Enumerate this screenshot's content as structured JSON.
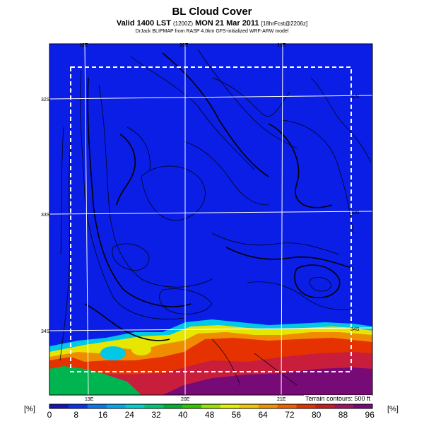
{
  "header": {
    "title": "BL Cloud Cover",
    "valid_text": "Valid 1400 LST",
    "valid_code": "(1200Z)",
    "date_text": "MON 21 Mar 2011",
    "forecast_code": "[18hrFcst@2206z]",
    "credit": "DrJack BLIPMAP from RASP 4.0km GFS-initialized WRF-ARW model"
  },
  "map": {
    "lon_labels_top": [
      "19E",
      "20E",
      "21E"
    ],
    "lon_labels_bottom": [
      "19E",
      "20E",
      "21E"
    ],
    "lat_labels_left": [
      "32S",
      "33S",
      "34S"
    ],
    "lat_labels_right": [
      "32S",
      "33S",
      "34S"
    ],
    "terrain_note": "Terrain contours: 500 ft"
  },
  "colorbar": {
    "unit_label": "[%]",
    "ticks": [
      "0",
      "8",
      "16",
      "24",
      "32",
      "40",
      "48",
      "56",
      "64",
      "72",
      "80",
      "88",
      "96"
    ],
    "colors": [
      "#1414b4",
      "#0a32f0",
      "#0a78f0",
      "#00aaf0",
      "#00d2d2",
      "#00c878",
      "#00b432",
      "#32c800",
      "#96e600",
      "#e6f000",
      "#f0c800",
      "#f09600",
      "#f06400",
      "#e63200",
      "#c81e1e",
      "#a01464",
      "#780a78"
    ]
  }
}
